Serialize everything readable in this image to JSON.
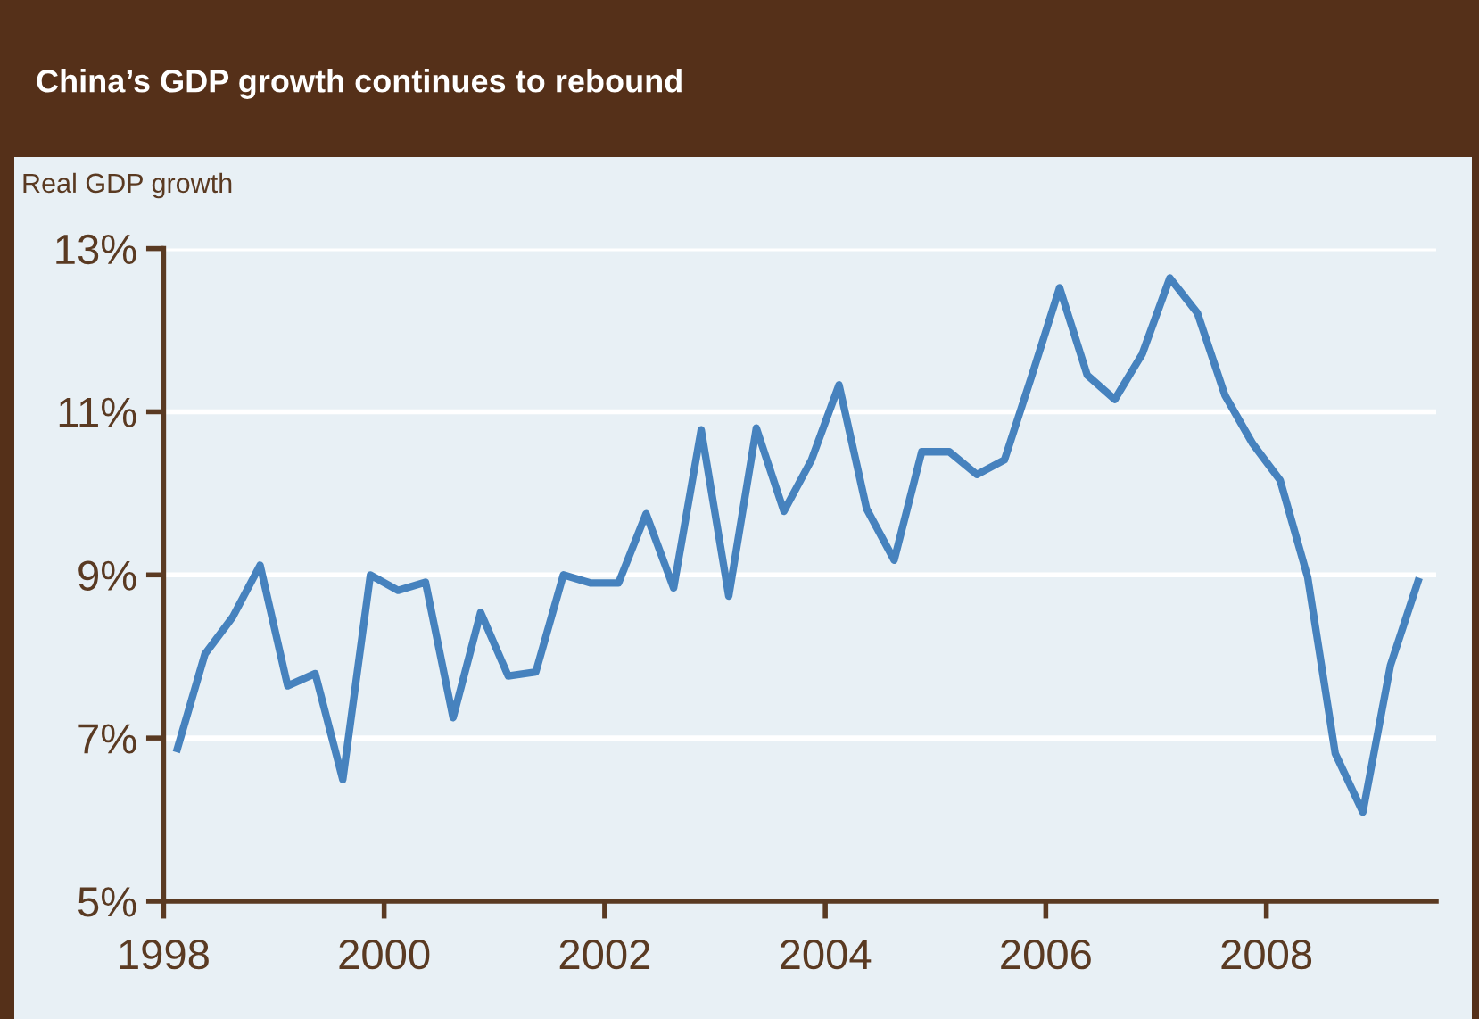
{
  "chart_data": {
    "type": "line",
    "title": "China’s GDP growth continues to rebound",
    "ylabel": "Real GDP growth",
    "x": [
      1998.125,
      1998.375,
      1998.625,
      1998.875,
      1999.125,
      1999.375,
      1999.625,
      1999.875,
      2000.125,
      2000.375,
      2000.625,
      2000.875,
      2001.125,
      2001.375,
      2001.625,
      2001.875,
      2002.125,
      2002.375,
      2002.625,
      2002.875,
      2003.125,
      2003.375,
      2003.625,
      2003.875,
      2004.125,
      2004.375,
      2004.625,
      2004.875,
      2005.125,
      2005.375,
      2005.625,
      2005.875,
      2006.125,
      2006.375,
      2006.625,
      2006.875,
      2007.125,
      2007.375,
      2007.625,
      2007.875,
      2008.125,
      2008.375,
      2008.625,
      2008.875,
      2009.125,
      2009.375
    ],
    "series": [
      {
        "color": "#4682be",
        "values": [
          6.87,
          8.03,
          8.48,
          9.12,
          7.64,
          7.79,
          6.49,
          9.0,
          8.81,
          8.91,
          7.25,
          8.54,
          7.76,
          7.81,
          9.0,
          8.9,
          8.9,
          9.75,
          8.84,
          10.78,
          8.74,
          10.8,
          9.78,
          10.41,
          11.33,
          9.81,
          9.18,
          10.51,
          10.51,
          10.23,
          10.41,
          11.45,
          12.52,
          11.45,
          11.15,
          11.71,
          12.64,
          12.21,
          11.2,
          10.61,
          10.16,
          8.97,
          6.81,
          6.09,
          7.89,
          8.92
        ]
      }
    ],
    "xlim": [
      1998,
      2009.54
    ],
    "xticks": [
      1998,
      2000,
      2002,
      2004,
      2006,
      2008
    ],
    "ylim": [
      5,
      13
    ],
    "yticks": [
      {
        "value": 5,
        "label": "5%"
      },
      {
        "value": 7,
        "label": "7%"
      },
      {
        "value": 9,
        "label": "9%"
      },
      {
        "value": 11,
        "label": "11%"
      },
      {
        "value": 13,
        "label": "13%"
      }
    ],
    "grid": "y",
    "legend": false,
    "marker": "none",
    "line_style": "solid"
  }
}
